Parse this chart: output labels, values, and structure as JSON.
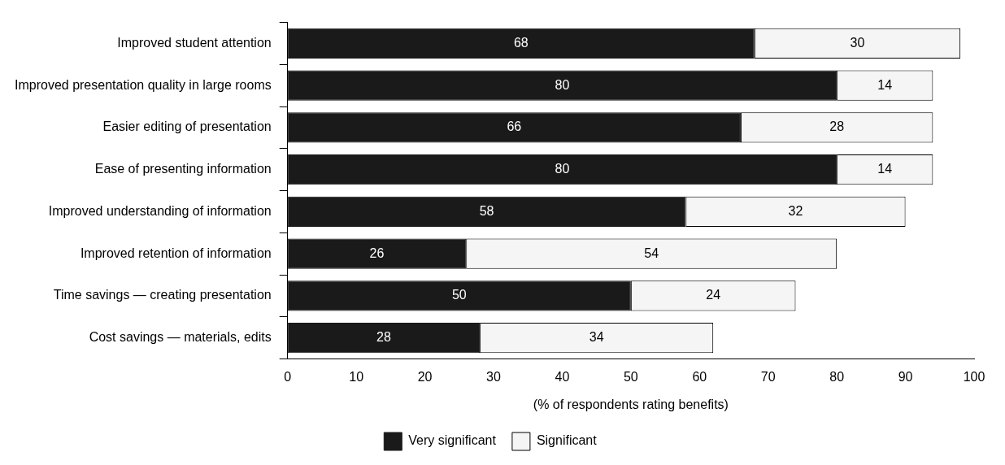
{
  "chart_data": {
    "type": "bar",
    "orientation": "horizontal",
    "stacked": true,
    "xlabel": "(% of respondents rating benefits)",
    "categories": [
      "Improved student attention",
      "Improved presentation quality in large rooms",
      "Easier editing of presentation",
      "Ease of presenting information",
      "Improved understanding of information",
      "Improved retention of information",
      "Time savings — creating presentation",
      "Cost savings — materials, edits"
    ],
    "series": [
      {
        "name": "Very significant",
        "color": "#1a1a1a",
        "values": [
          68,
          80,
          66,
          80,
          58,
          26,
          50,
          28
        ]
      },
      {
        "name": "Significant",
        "color": "#f5f5f5",
        "values": [
          30,
          14,
          28,
          14,
          32,
          54,
          24,
          34
        ]
      }
    ],
    "xlim": [
      0,
      100
    ],
    "xticks": [
      0,
      10,
      20,
      30,
      40,
      50,
      60,
      70,
      80,
      90,
      100
    ],
    "grid": false,
    "legend": "bottom",
    "data_labels": true
  }
}
